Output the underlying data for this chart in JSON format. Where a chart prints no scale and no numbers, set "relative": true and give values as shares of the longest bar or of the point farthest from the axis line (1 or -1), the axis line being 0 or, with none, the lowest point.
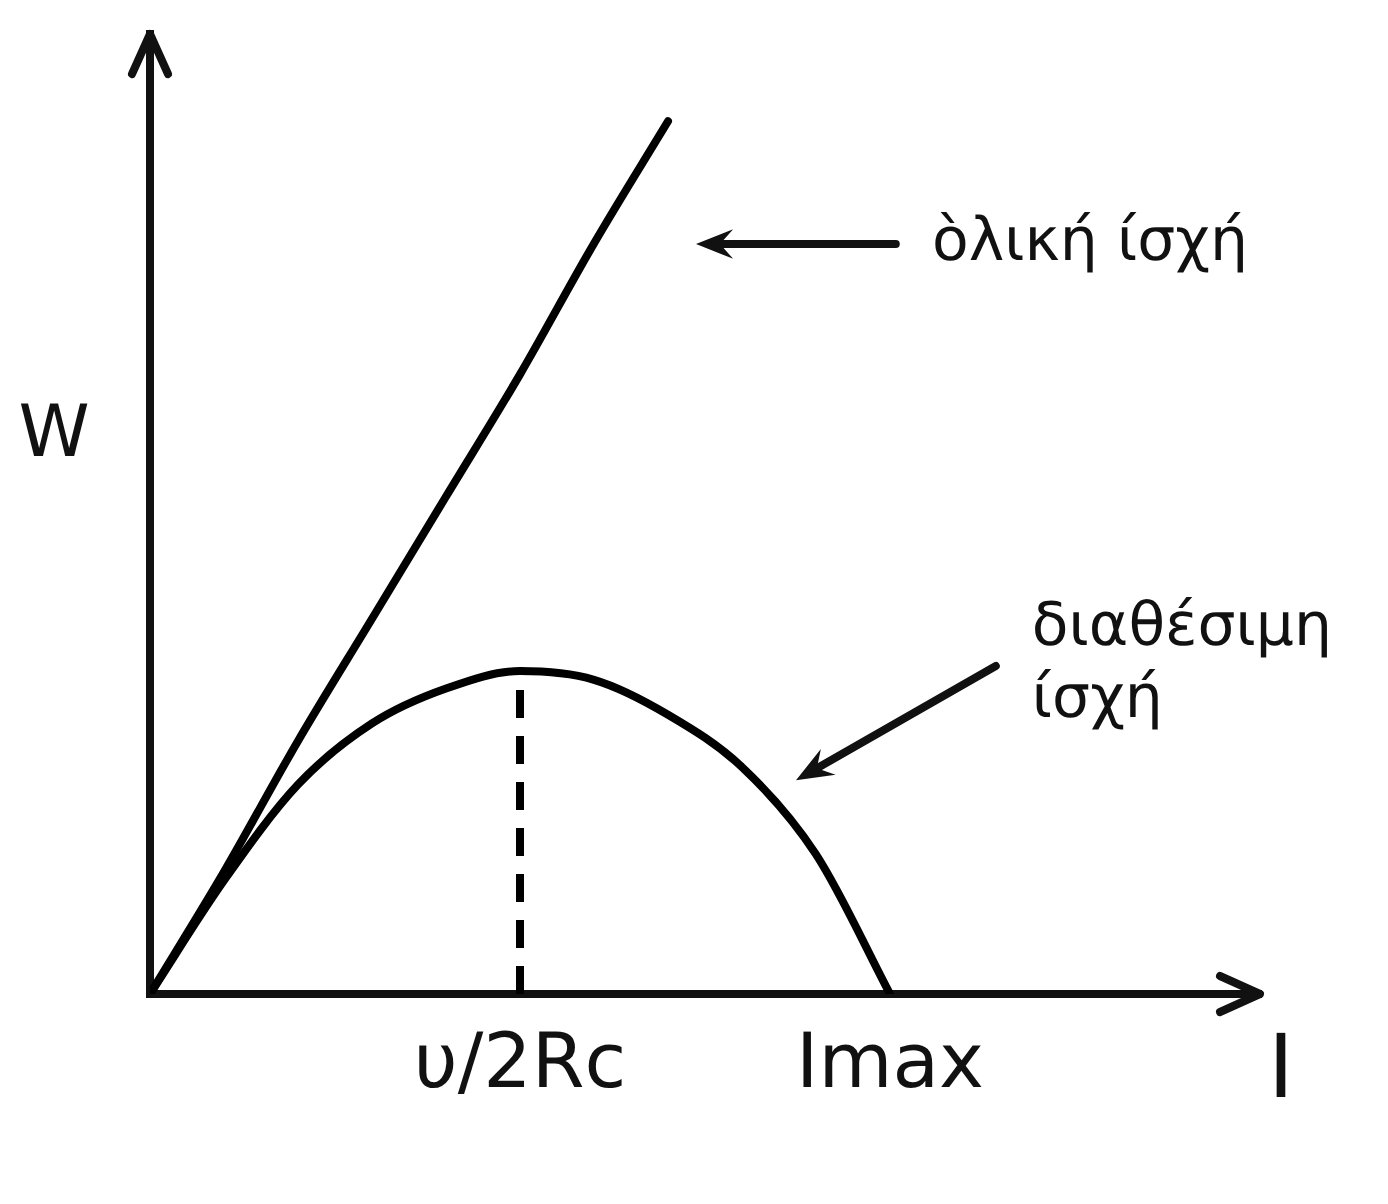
{
  "chart_data": {
    "type": "line",
    "relative": true,
    "xlabel": "I",
    "ylabel": "W",
    "categories": [
      null,
      null,
      null,
      null,
      null,
      "υ/2Rc",
      null,
      null,
      null,
      null,
      "Imax",
      null,
      null,
      null,
      null,
      null
    ],
    "series": [
      {
        "color": "#000000",
        "values": [
          0,
          0.14,
          0.29,
          0.43,
          0.57,
          0.71,
          0.86,
          1,
          null,
          null,
          null,
          null,
          null,
          null,
          null,
          null
        ]
      },
      {
        "color": "#000000",
        "values": [
          0,
          0.13,
          0.24,
          0.31,
          0.35,
          0.37,
          0.36,
          0.32,
          0.26,
          0.16,
          0,
          null,
          null,
          null,
          null,
          null
        ]
      },
      {
        "color": "#000000",
        "x": [
          "υ/2Rc",
          "υ/2Rc"
        ],
        "values": [
          0,
          0.37
        ],
        "line_style": "dashed"
      }
    ],
    "annotations": [
      "ὸλική ίσχή",
      "διαθέσιμη ίσχή"
    ],
    "marker": "none",
    "legend": false,
    "tick_labels": "x"
  }
}
